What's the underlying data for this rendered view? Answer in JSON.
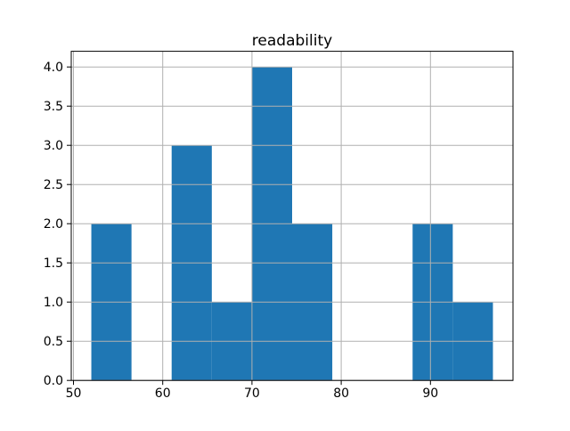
{
  "figure": {
    "background": "#ffffff",
    "bar_color": "#1f77b4",
    "grid_color": "#b0b0b0",
    "axis_color": "#000000",
    "text_color": "#000000"
  },
  "chart_data": {
    "type": "bar",
    "subtype": "histogram",
    "title": "readability",
    "xlabel": "",
    "ylabel": "",
    "bin_edges": [
      52.0,
      56.5,
      61.0,
      65.5,
      70.0,
      74.5,
      79.0,
      83.5,
      88.0,
      92.5,
      97.0
    ],
    "values": [
      2,
      0,
      3,
      1,
      4,
      2,
      0,
      0,
      2,
      1
    ],
    "xlim": [
      49.75,
      99.25
    ],
    "ylim": [
      0,
      4.2
    ],
    "x_ticks": [
      50,
      60,
      70,
      80,
      90
    ],
    "y_ticks": [
      0.0,
      0.5,
      1.0,
      1.5,
      2.0,
      2.5,
      3.0,
      3.5,
      4.0
    ],
    "grid": true,
    "grid_on_top_of_bars": true,
    "legend_position": "none"
  }
}
